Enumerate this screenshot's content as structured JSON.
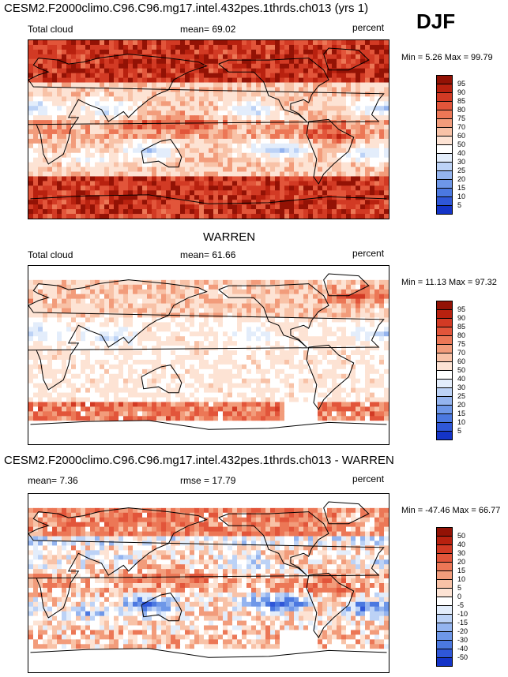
{
  "season": "DJF",
  "colors": {
    "cloud": [
      "#0b0b8c",
      "#1434c8",
      "#2f57d8",
      "#4b78e0",
      "#6e97e8",
      "#94b4ef",
      "#bcd2f6",
      "#e3edfb",
      "#ffffff",
      "#fde3d4",
      "#f8c2a7",
      "#f29c7b",
      "#ec7756",
      "#e2553a",
      "#d23a24",
      "#b8210f",
      "#931205"
    ],
    "diff": [
      "#0b0b8c",
      "#1434c8",
      "#2f57d8",
      "#4b78e0",
      "#6e97e8",
      "#94b4ef",
      "#bcd2f6",
      "#e3edfb",
      "#ffffff",
      "#fde3d4",
      "#f8c2a7",
      "#f29c7b",
      "#ec7756",
      "#e2553a",
      "#d23a24",
      "#b8210f",
      "#931205"
    ]
  },
  "chart_data": [
    {
      "type": "heatmap",
      "title": "CESM2.F2000climo.C96.C96.mg17.intel.432pes.1thrds.ch013 (yrs 1)",
      "left_label": "Total cloud",
      "mean_text": "mean=  69.02",
      "units": "percent",
      "minmax_text": "Min =   5.26 Max =  99.79",
      "min": 5.26,
      "max": 99.79,
      "mean": 69.02,
      "colorbar_ticks": [
        "95",
        "90",
        "85",
        "80",
        "75",
        "70",
        "60",
        "50",
        "40",
        "30",
        "25",
        "20",
        "15",
        "10",
        "5"
      ],
      "field_style": "model"
    },
    {
      "type": "heatmap",
      "title": "WARREN",
      "left_label": "Total cloud",
      "mean_text": "mean=  61.66",
      "units": "percent",
      "minmax_text": "Min =  11.13 Max =  97.32",
      "min": 11.13,
      "max": 97.32,
      "mean": 61.66,
      "colorbar_ticks": [
        "95",
        "90",
        "85",
        "80",
        "75",
        "70",
        "60",
        "50",
        "40",
        "30",
        "25",
        "20",
        "15",
        "10",
        "5"
      ],
      "field_style": "obs"
    },
    {
      "type": "heatmap",
      "title": "CESM2.F2000climo.C96.C96.mg17.intel.432pes.1thrds.ch013 - WARREN",
      "left_label": "mean=   7.36",
      "mean_text": "rmse =  17.79",
      "units": "percent",
      "minmax_text": "Min = -47.46 Max =  66.77",
      "min": -47.46,
      "max": 66.77,
      "mean": 7.36,
      "rmse": 17.79,
      "colorbar_ticks": [
        "50",
        "40",
        "30",
        "20",
        "15",
        "10",
        "5",
        "0",
        "-5",
        "-10",
        "-15",
        "-20",
        "-30",
        "-40",
        "-50"
      ],
      "field_style": "diff"
    }
  ]
}
